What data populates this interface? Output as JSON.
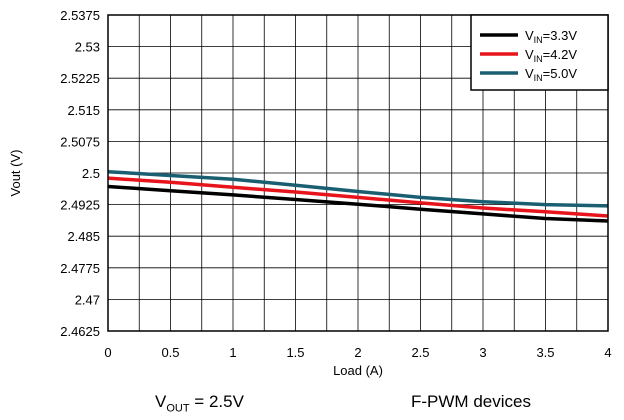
{
  "chart_data": {
    "type": "line",
    "xlabel": "Load (A)",
    "ylabel": "Vout (V)",
    "xlim": [
      0,
      4
    ],
    "ylim": [
      2.4625,
      2.5375
    ],
    "x_ticks": [
      "0",
      "0.5",
      "1",
      "1.5",
      "2",
      "2.5",
      "3",
      "3.5",
      "4"
    ],
    "y_ticks": [
      "2.5375",
      "2.53",
      "2.5225",
      "2.515",
      "2.5075",
      "2.5",
      "2.4925",
      "2.485",
      "2.4775",
      "2.47",
      "2.4625"
    ],
    "grid": true,
    "legend_position": "top-right",
    "x": [
      0,
      0.5,
      1,
      1.5,
      2,
      2.5,
      3,
      3.5,
      4
    ],
    "series": [
      {
        "name_main": "V",
        "name_sub": "IN",
        "name_rest": "=3.3V",
        "color": "#000000",
        "values": [
          2.4968,
          2.4958,
          2.4948,
          2.4937,
          2.4926,
          2.4914,
          2.4903,
          2.4892,
          2.4886
        ]
      },
      {
        "name_main": "V",
        "name_sub": "IN",
        "name_rest": "=4.2V",
        "color": "#e8141c",
        "values": [
          2.4988,
          2.4978,
          2.4966,
          2.4955,
          2.4942,
          2.4929,
          2.4917,
          2.4908,
          2.4898
        ]
      },
      {
        "name_main": "V",
        "name_sub": "IN",
        "name_rest": "=5.0V",
        "color": "#1a5e72",
        "values": [
          2.5003,
          2.4994,
          2.4985,
          2.4971,
          2.4956,
          2.4942,
          2.4932,
          2.4925,
          2.4922
        ]
      }
    ]
  },
  "captions": {
    "left_main": "V",
    "left_sub": "OUT",
    "left_rest": " = 2.5V",
    "right": "F-PWM devices"
  }
}
